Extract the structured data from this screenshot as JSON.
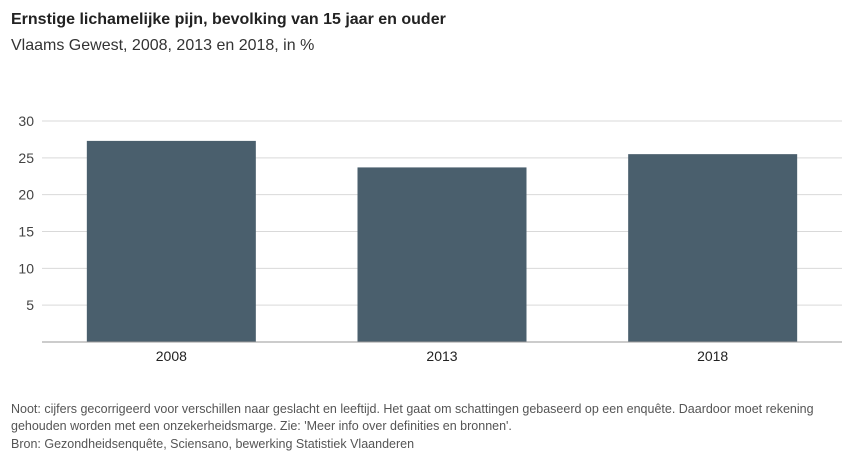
{
  "chart_data": {
    "type": "bar",
    "title": "Ernstige lichamelijke pijn, bevolking van 15 jaar en ouder",
    "subtitle": "Vlaams Gewest, 2008, 2013 en 2018, in %",
    "categories": [
      "2008",
      "2013",
      "2018"
    ],
    "values": [
      27.3,
      23.7,
      25.5
    ],
    "ylim": [
      0,
      30
    ],
    "yticks": [
      "5",
      "10",
      "15",
      "20",
      "25",
      "30"
    ],
    "ytick_values": [
      5,
      10,
      15,
      20,
      25,
      30
    ],
    "xlabel": "",
    "ylabel": "",
    "grid": true,
    "bar_color": "#4a5f6d",
    "grid_color": "#d9d9d9",
    "axis_color": "#999999"
  },
  "footer": {
    "note": "Noot: cijfers gecorrigeerd voor verschillen naar geslacht en leeftijd. Het gaat om schattingen gebaseerd op een enquête. Daardoor moet rekening gehouden worden met een onzekerheidsmarge. Zie: 'Meer info over definities en bronnen'.",
    "source": "Bron: Gezondheidsenquête, Sciensano, bewerking Statistiek Vlaanderen"
  }
}
